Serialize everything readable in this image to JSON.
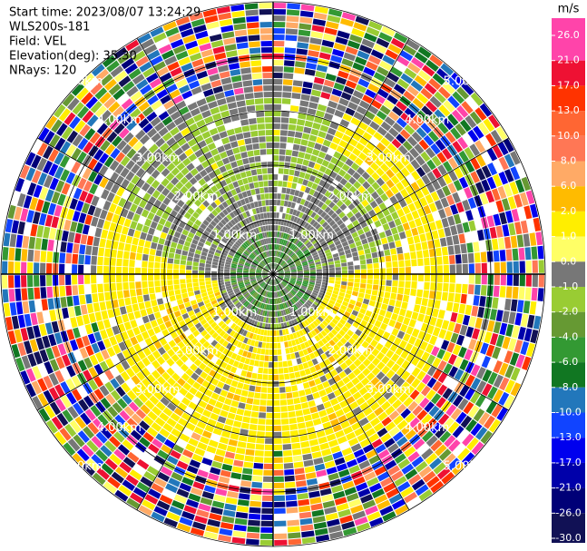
{
  "chart_data": {
    "type": "ppi",
    "info": [
      "Start time: 2023/08/07 13:24:29",
      "WLS200s-181",
      "Field: VEL",
      "Elevation(deg): 35.30",
      "NRays: 120"
    ],
    "range_labels": [
      "1.00km",
      "2.00km",
      "3.00km",
      "4.00km",
      "5.00km"
    ],
    "colorbar": {
      "unit": "m/s",
      "ticks": [
        {
          "value": 26,
          "label": "26.0"
        },
        {
          "value": 21,
          "label": "21.0"
        },
        {
          "value": 17,
          "label": "17.0"
        },
        {
          "value": 13,
          "label": "13.0"
        },
        {
          "value": 10,
          "label": "10.0"
        },
        {
          "value": 8,
          "label": "8.0"
        },
        {
          "value": 6,
          "label": "6.0"
        },
        {
          "value": 2,
          "label": "2.0"
        },
        {
          "value": 1,
          "label": "1.0"
        },
        {
          "value": 0,
          "label": "0.0"
        },
        {
          "value": -1,
          "label": "-1.0"
        },
        {
          "value": -2,
          "label": "-2.0"
        },
        {
          "value": -4,
          "label": "-4.0"
        },
        {
          "value": -6,
          "label": "-6.0"
        },
        {
          "value": -8,
          "label": "-8.0"
        },
        {
          "value": -10,
          "label": "-10.0"
        },
        {
          "value": -13,
          "label": "-13.0"
        },
        {
          "value": -17,
          "label": "-17.0"
        },
        {
          "value": -21,
          "label": "-21.0"
        },
        {
          "value": -26,
          "label": "-26.0"
        },
        {
          "value": -30,
          "label": "-30.0"
        }
      ],
      "colors": [
        "#ff44aa",
        "#ee1133",
        "#ff3300",
        "#ff6633",
        "#ff7755",
        "#ffaa66",
        "#ffbb00",
        "#ffee00",
        "#ffff66",
        "#777777",
        "#99cc33",
        "#669933",
        "#339933",
        "#117722",
        "#2277bb",
        "#1144ff",
        "#0000ee",
        "#0000aa",
        "#000077",
        "#111155"
      ]
    }
  }
}
